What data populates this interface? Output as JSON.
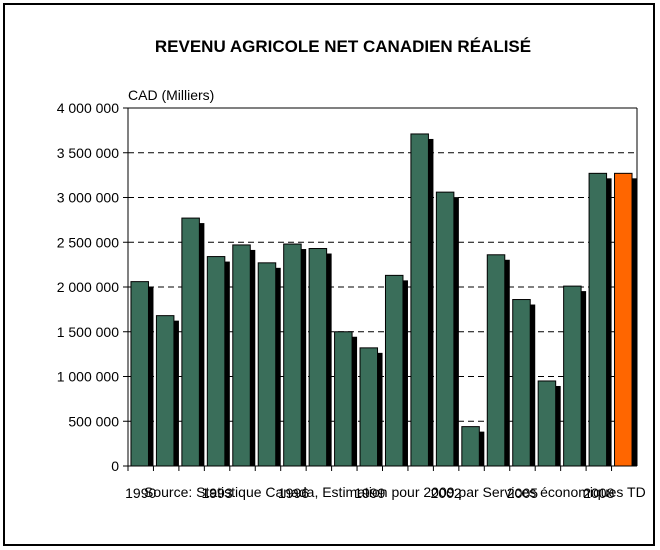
{
  "chart_data": {
    "type": "bar",
    "title": "REVENU AGRICOLE NET CANADIEN RÉALISÉ",
    "ylabel": "CAD (Milliers)",
    "xlabel": "",
    "categories": [
      "1990",
      "1991",
      "1992",
      "1993",
      "1994",
      "1995",
      "1996",
      "1997",
      "1998",
      "1999",
      "2000",
      "2001",
      "2002",
      "2003",
      "2004",
      "2005",
      "2006",
      "2007",
      "2008",
      "2009"
    ],
    "x_tick_labels": [
      "1990",
      "1993",
      "1996",
      "1999",
      "2002",
      "2005",
      "2008"
    ],
    "values": [
      2060000,
      1680000,
      2770000,
      2340000,
      2470000,
      2270000,
      2480000,
      2430000,
      1500000,
      1320000,
      2130000,
      3710000,
      3060000,
      440000,
      2360000,
      1860000,
      950000,
      2010000,
      3270000,
      3270000
    ],
    "ylim": [
      0,
      4000000
    ],
    "y_ticks": [
      0,
      500000,
      1000000,
      1500000,
      2000000,
      2500000,
      3000000,
      3500000,
      4000000
    ],
    "y_tick_labels": [
      "0",
      "500 000",
      "1 000 000",
      "1 500 000",
      "2 000 000",
      "2 500 000",
      "3 000 000",
      "3 500 000",
      "4 000 000"
    ],
    "grid": true,
    "colors": {
      "bar": "#3a6e5a",
      "highlight": "#ff6600",
      "shadow": "#000000",
      "grid": "#000000"
    },
    "highlight_index": 19,
    "source": "Source: Statistique Canada, Estimation pour 2009 par Services économiques TD"
  }
}
